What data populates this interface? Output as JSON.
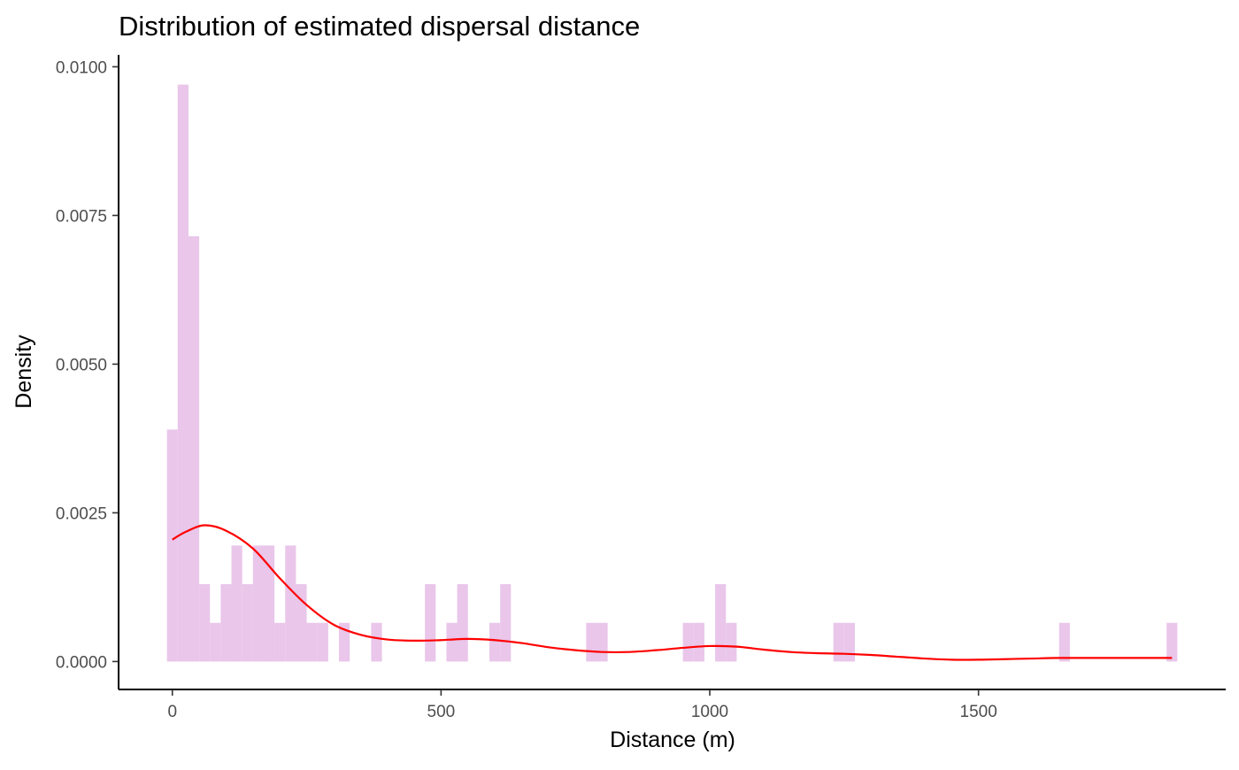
{
  "chart_data": {
    "type": "histogram",
    "title": "Distribution of estimated dispersal distance",
    "xlabel": "Distance (m)",
    "ylabel": "Density",
    "xlim": [
      -100,
      1960
    ],
    "ylim": [
      -0.00047,
      0.0102
    ],
    "x_ticks": [
      0,
      500,
      1000,
      1500
    ],
    "x_tick_labels": [
      "0",
      "500",
      "1000",
      "1500"
    ],
    "y_ticks": [
      0,
      0.0025,
      0.005,
      0.0075,
      0.01
    ],
    "y_tick_labels": [
      "0.0000",
      "0.0025",
      "0.0050",
      "0.0075",
      "0.0100"
    ],
    "grid": false,
    "bar_color": "#E9C6EA",
    "density_color": "#FF0000",
    "bins": [
      {
        "x0": -10,
        "x1": 10,
        "density": 0.0039
      },
      {
        "x0": 10,
        "x1": 30,
        "density": 0.0097
      },
      {
        "x0": 30,
        "x1": 50,
        "density": 0.00715
      },
      {
        "x0": 50,
        "x1": 70,
        "density": 0.0013
      },
      {
        "x0": 70,
        "x1": 90,
        "density": 0.00065
      },
      {
        "x0": 90,
        "x1": 110,
        "density": 0.0013
      },
      {
        "x0": 110,
        "x1": 130,
        "density": 0.00195
      },
      {
        "x0": 130,
        "x1": 150,
        "density": 0.0013
      },
      {
        "x0": 150,
        "x1": 170,
        "density": 0.00195
      },
      {
        "x0": 170,
        "x1": 190,
        "density": 0.00195
      },
      {
        "x0": 190,
        "x1": 210,
        "density": 0.00065
      },
      {
        "x0": 210,
        "x1": 230,
        "density": 0.00195
      },
      {
        "x0": 230,
        "x1": 250,
        "density": 0.0013
      },
      {
        "x0": 250,
        "x1": 270,
        "density": 0.00065
      },
      {
        "x0": 270,
        "x1": 290,
        "density": 0.00065
      },
      {
        "x0": 310,
        "x1": 330,
        "density": 0.00065
      },
      {
        "x0": 370,
        "x1": 390,
        "density": 0.00065
      },
      {
        "x0": 470,
        "x1": 490,
        "density": 0.0013
      },
      {
        "x0": 510,
        "x1": 530,
        "density": 0.00065
      },
      {
        "x0": 530,
        "x1": 550,
        "density": 0.0013
      },
      {
        "x0": 590,
        "x1": 610,
        "density": 0.00065
      },
      {
        "x0": 610,
        "x1": 630,
        "density": 0.0013
      },
      {
        "x0": 770,
        "x1": 790,
        "density": 0.00065
      },
      {
        "x0": 790,
        "x1": 810,
        "density": 0.00065
      },
      {
        "x0": 950,
        "x1": 970,
        "density": 0.00065
      },
      {
        "x0": 970,
        "x1": 990,
        "density": 0.00065
      },
      {
        "x0": 1010,
        "x1": 1030,
        "density": 0.0013
      },
      {
        "x0": 1030,
        "x1": 1050,
        "density": 0.00065
      },
      {
        "x0": 1230,
        "x1": 1250,
        "density": 0.00065
      },
      {
        "x0": 1250,
        "x1": 1270,
        "density": 0.00065
      },
      {
        "x0": 1650,
        "x1": 1670,
        "density": 0.00065
      },
      {
        "x0": 1850,
        "x1": 1870,
        "density": 0.00065
      }
    ],
    "density_curve": {
      "x": [
        0,
        25,
        60,
        100,
        150,
        200,
        250,
        300,
        350,
        400,
        450,
        500,
        550,
        600,
        650,
        700,
        750,
        800,
        850,
        900,
        950,
        1000,
        1050,
        1100,
        1150,
        1200,
        1250,
        1300,
        1350,
        1400,
        1450,
        1500,
        1550,
        1600,
        1650,
        1700,
        1750,
        1800,
        1860
      ],
      "y": [
        0.00205,
        0.00218,
        0.00229,
        0.0022,
        0.0019,
        0.0014,
        0.00095,
        0.00062,
        0.00045,
        0.00037,
        0.00035,
        0.00036,
        0.00038,
        0.00036,
        0.00031,
        0.00024,
        0.00019,
        0.00016,
        0.00016,
        0.00019,
        0.00023,
        0.00026,
        0.00025,
        0.0002,
        0.00016,
        0.00014,
        0.00013,
        0.00011,
        8e-05,
        5e-05,
        3e-05,
        3e-05,
        4e-05,
        5e-05,
        6e-05,
        6e-05,
        6e-05,
        6e-05,
        6e-05
      ]
    }
  }
}
